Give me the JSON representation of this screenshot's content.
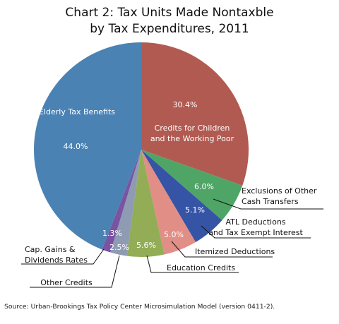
{
  "chart_data": {
    "type": "pie",
    "title": "Chart 2: Tax Units Made Nontaxble",
    "subtitle": "by Tax Expenditures, 2011",
    "slices": [
      {
        "label": "Credits for Children and the Working Poor",
        "value": 30.4,
        "value_label": "30.4%",
        "color": "#b15a52"
      },
      {
        "label": "Exclusions of Other Cash Transfers",
        "value": 6.0,
        "value_label": "6.0%",
        "color": "#4fa566"
      },
      {
        "label": "ATL Deductions and Tax Exempt Interest",
        "value": 5.1,
        "value_label": "5.1%",
        "color": "#3554a6"
      },
      {
        "label": "Itemized Deductions",
        "value": 5.0,
        "value_label": "5.0%",
        "color": "#e08e86"
      },
      {
        "label": "Education Credits",
        "value": 5.6,
        "value_label": "5.6%",
        "color": "#93ac56"
      },
      {
        "label": "Other Credits",
        "value": 2.5,
        "value_label": "2.5%",
        "color": "#8e9bb2"
      },
      {
        "label": "Cap. Gains & Dividends Rates",
        "value": 1.3,
        "value_label": "1.3%",
        "color": "#7a53a3"
      },
      {
        "label": "Elderly Tax Benefits",
        "value": 44.0,
        "value_label": "44.0%",
        "color": "#4a82b4"
      }
    ]
  },
  "source": "Source: Urban-Brookings Tax Policy Center Microsimulation Model (version 0411-2)."
}
